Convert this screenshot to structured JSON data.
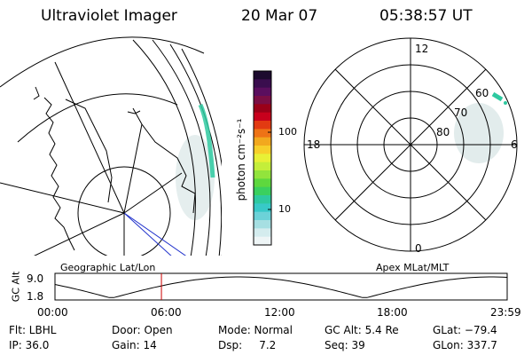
{
  "header": {
    "title": "Ultraviolet Imager",
    "date": "20 Mar 07",
    "time": "05:38:57 UT"
  },
  "colorbar": {
    "label": "photon cm⁻²s⁻¹",
    "ticks": [
      "100",
      "10"
    ],
    "colors": [
      "#1c0a2e",
      "#3a0d4e",
      "#5a0e5e",
      "#7a0e44",
      "#9a0018",
      "#c8001c",
      "#e23a12",
      "#ee7316",
      "#f2a81e",
      "#f7cf2a",
      "#e8f036",
      "#c4ee3a",
      "#92e43c",
      "#5ed83e",
      "#3ad05e",
      "#2ec9a0",
      "#38c9c8",
      "#6cd2d8",
      "#a6dfe2",
      "#d4ecee",
      "#eef5f6"
    ]
  },
  "geo_map": {
    "label": "Geographic Lat/Lon",
    "aurora_color": "#2ec9a0"
  },
  "polar_plot": {
    "label": "Apex MLat/MLT",
    "mlt_labels": [
      "12",
      "18",
      "6",
      "0"
    ],
    "mlat_labels": [
      "60",
      "70",
      "80"
    ]
  },
  "altitude_track": {
    "ylabel": "GC Alt",
    "yticks": [
      "9.0",
      "1.8"
    ],
    "xticks": [
      "00:00",
      "06:00",
      "12:00",
      "18:00",
      "23:59"
    ],
    "current_time_fraction": 0.2354,
    "marker_color": "#cc0000"
  },
  "status": {
    "flt": "Flt: LBHL",
    "ip": "IP: 36.0",
    "door": "Door: Open",
    "gain": "Gain: 14",
    "mode": "Mode: Normal",
    "dsp": "Dsp:     7.2",
    "gc_alt": "GC Alt: 5.4 Re",
    "seq": "Seq: 39",
    "glat": "GLat: −79.4",
    "glon": "GLon: 337.7"
  }
}
